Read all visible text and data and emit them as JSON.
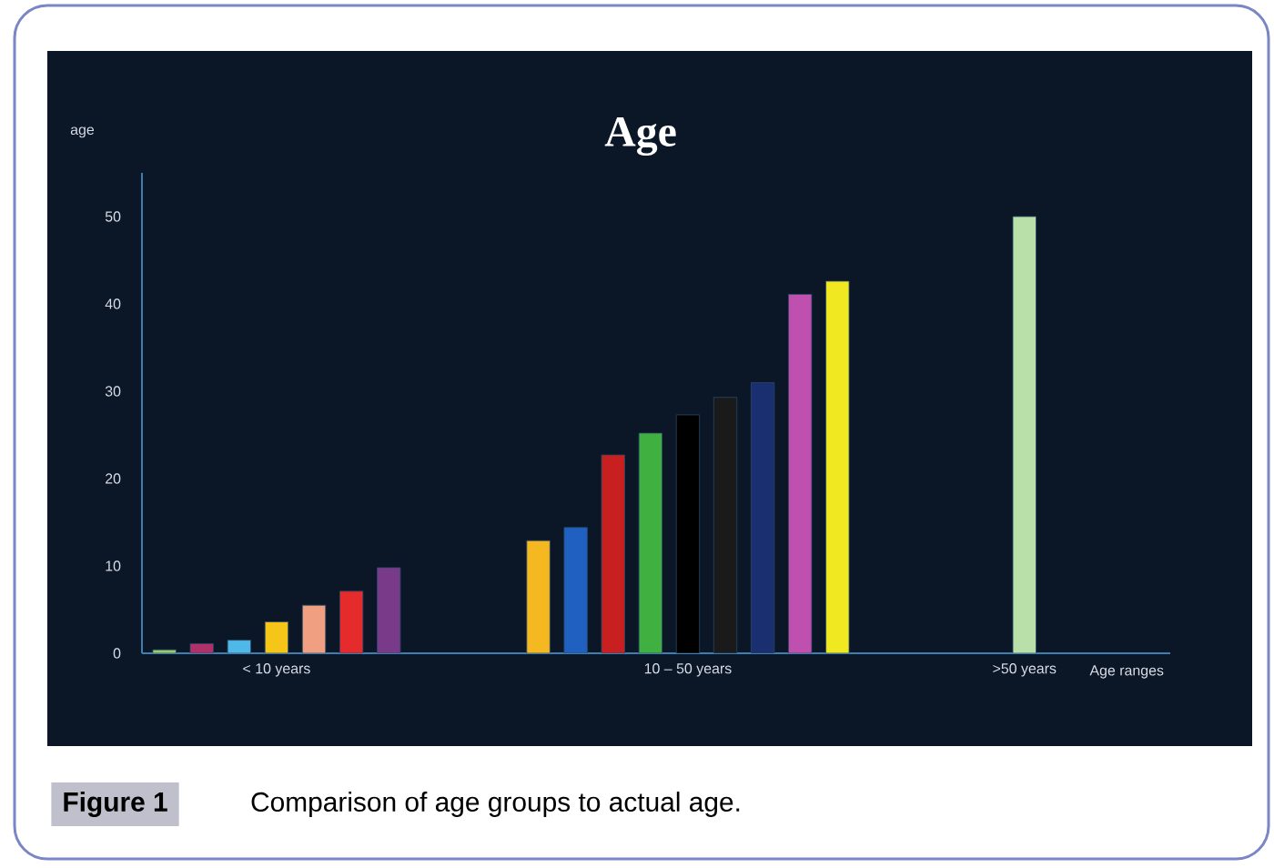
{
  "chart_data": {
    "type": "bar",
    "title": "Age",
    "xlabel": "Age ranges",
    "ylabel": "age",
    "categories": [
      null,
      null,
      null,
      "< 10 years",
      null,
      null,
      null,
      null,
      null,
      null,
      null,
      null,
      null,
      null,
      "10 – 50 years",
      null,
      null,
      null,
      null,
      null,
      null,
      null,
      null,
      ">50 years"
    ],
    "values": [
      0.4,
      1.1,
      1.5,
      3.6,
      5.5,
      7.1,
      9.8,
      null,
      null,
      null,
      12.9,
      14.4,
      22.7,
      25.2,
      27.3,
      29.3,
      31.0,
      41.1,
      42.6,
      null,
      null,
      null,
      null,
      50
    ],
    "colors": [
      "#9acd6a",
      "#b0306a",
      "#4fb8e8",
      "#f5c518",
      "#f0a080",
      "#e52b2b",
      "#7a3a8a",
      null,
      null,
      null,
      "#f5b820",
      "#2060c0",
      "#c82020",
      "#40b040",
      "#000000",
      "#1a1a1a",
      "#1a2f70",
      "#c050b0",
      "#f0e820",
      null,
      null,
      null,
      null,
      "#b8e0a8"
    ],
    "ylim": [
      0,
      55
    ],
    "yticks": [
      0,
      10,
      20,
      30,
      40,
      50
    ],
    "annotations": [
      "Figure 1",
      "Comparison of age groups to actual age."
    ]
  }
}
